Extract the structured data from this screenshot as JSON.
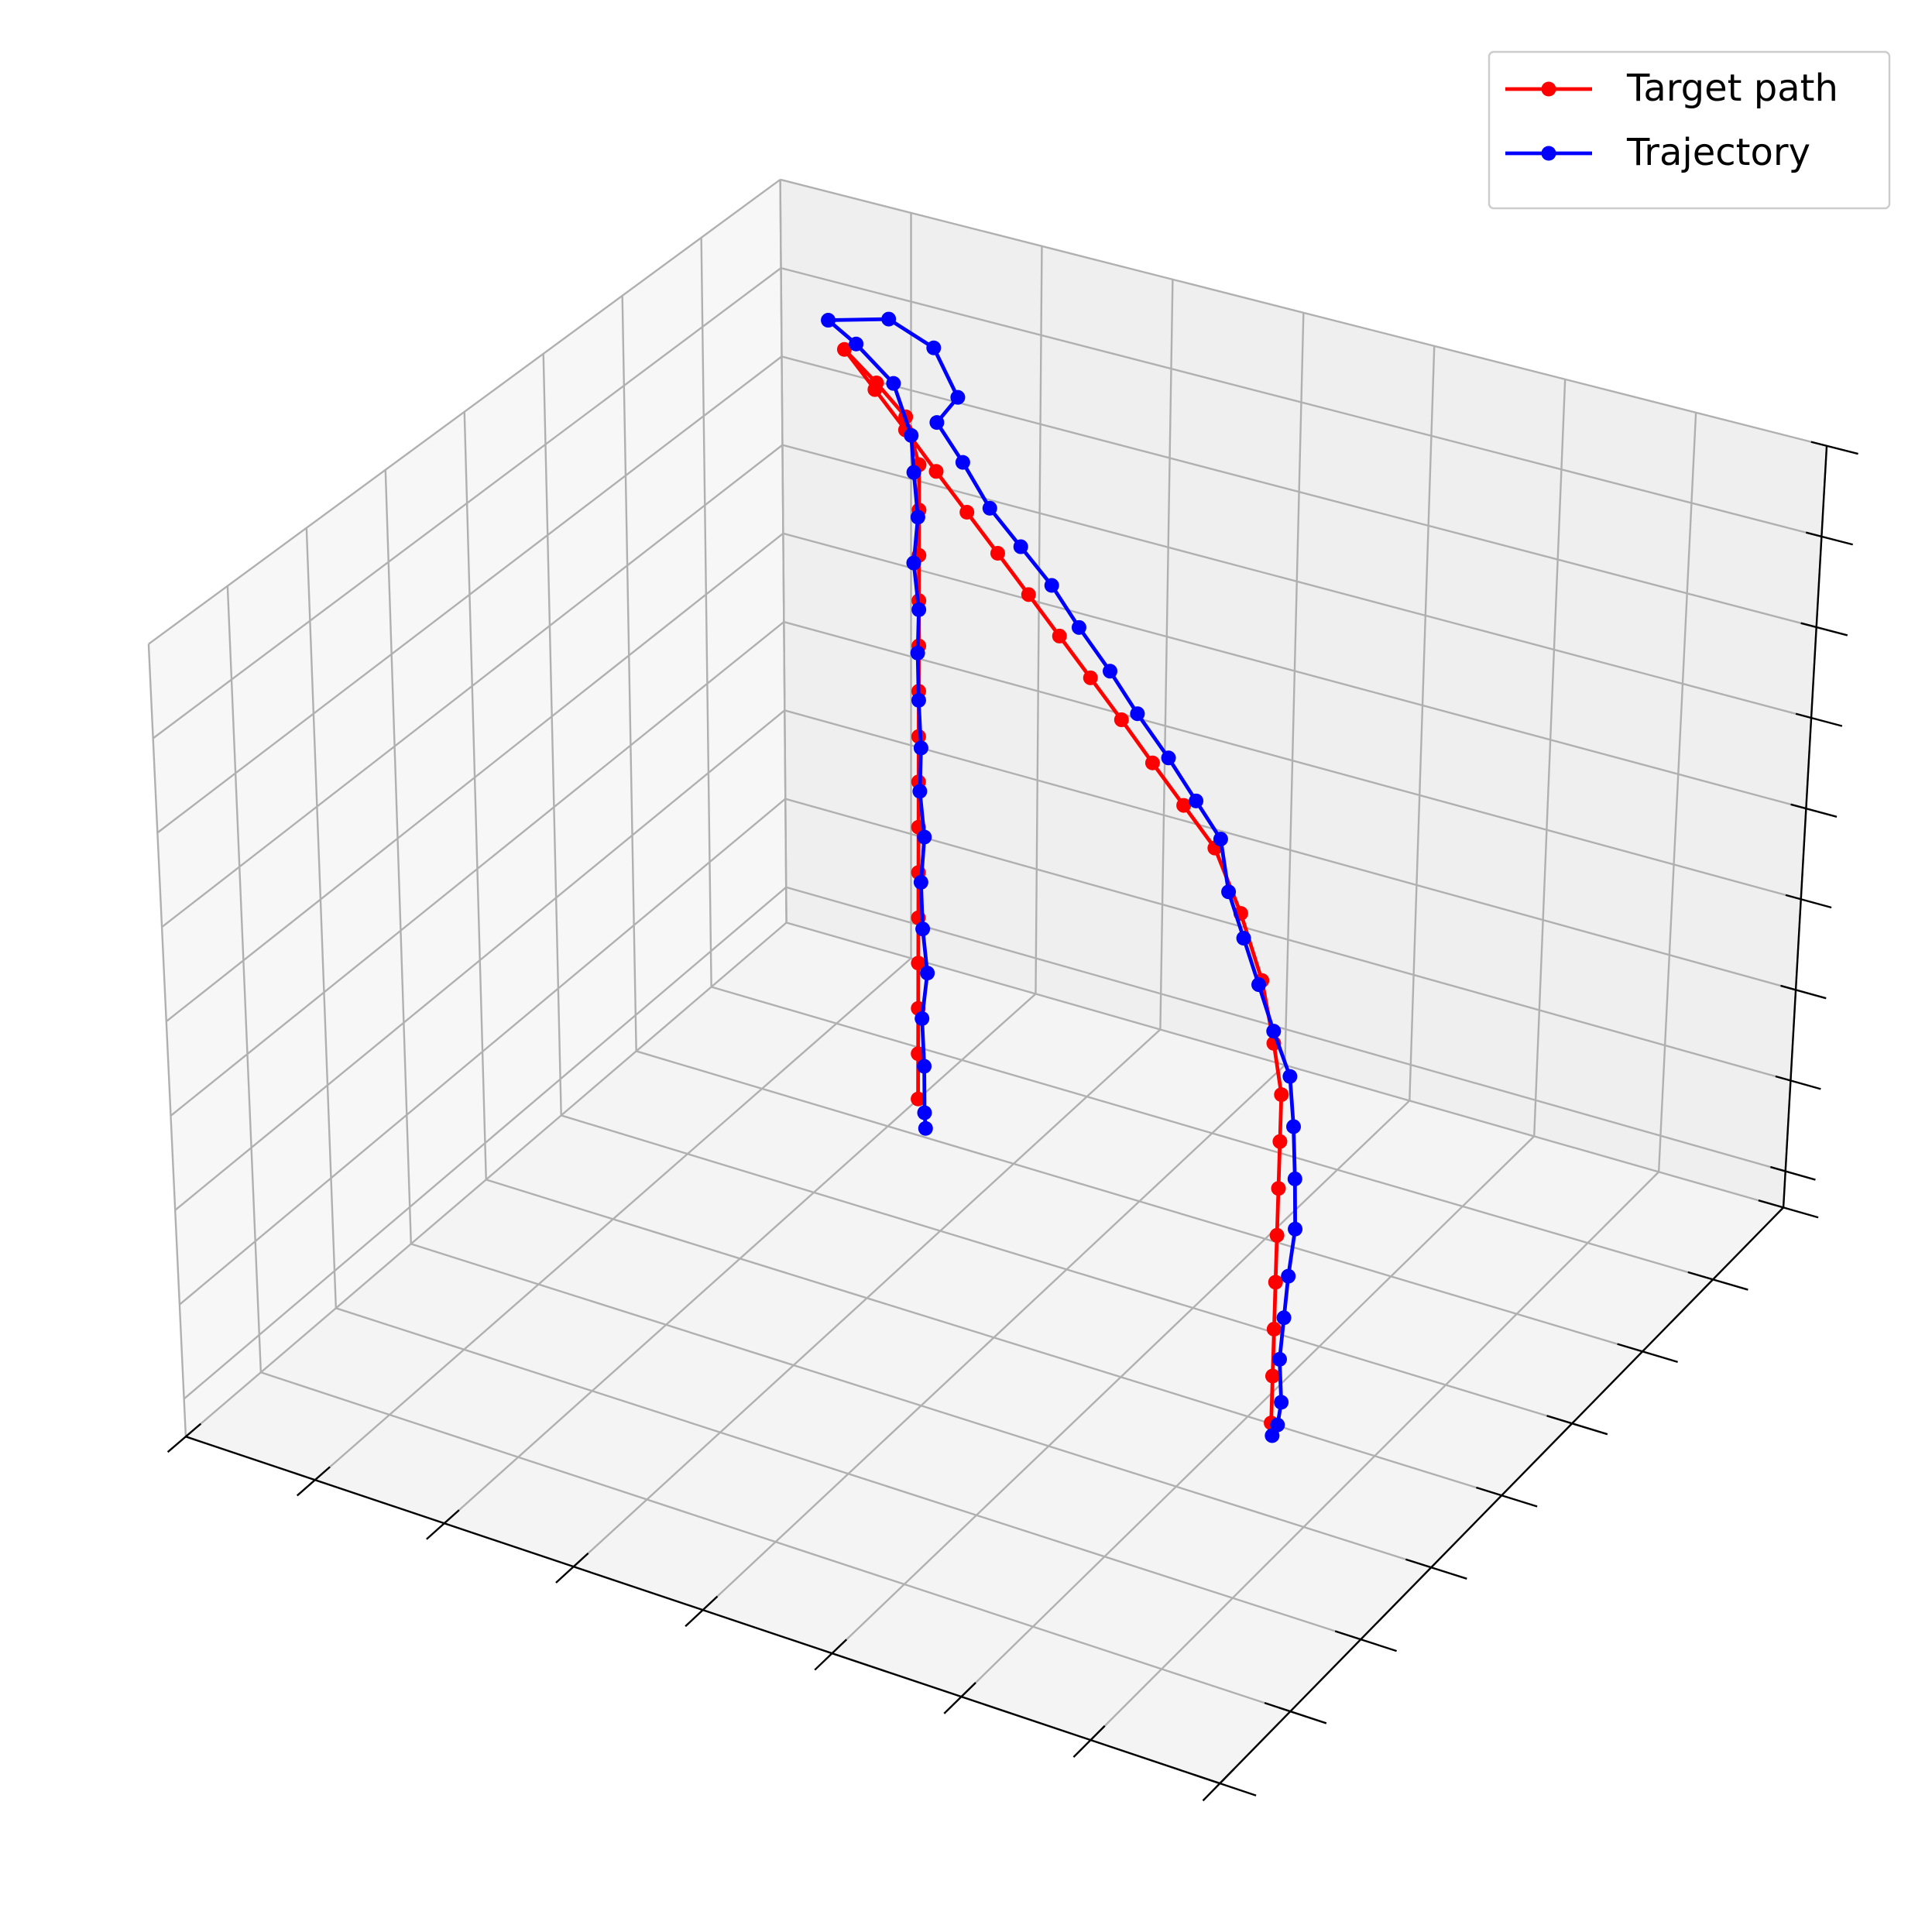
{
  "chart_data": {
    "type": "line3d",
    "grid": true,
    "legend": "upper right",
    "xlim": [
      0,
      8
    ],
    "ylim": [
      0,
      8
    ],
    "zlim": [
      -0.4,
      8
    ],
    "xticks": [
      0,
      1,
      2,
      3,
      4,
      5,
      6,
      7,
      8
    ],
    "yticks": [
      0,
      1,
      2,
      3,
      4,
      5,
      6,
      7,
      8
    ],
    "zticks": [
      0,
      1,
      2,
      3,
      4,
      5,
      6,
      7,
      8
    ],
    "series": [
      {
        "name": "Target path",
        "color": "#ff0000",
        "x": [
          2.24,
          2.24,
          2.24,
          2.24,
          2.24,
          2.24,
          2.24,
          2.24,
          2.24,
          2.24,
          2.24,
          2.24,
          2.24,
          2.24,
          2.24,
          2.08,
          1.8,
          1.44,
          1.8,
          2.16,
          2.52,
          2.88,
          3.24,
          3.6,
          3.96,
          4.32,
          4.68,
          5.04,
          5.4,
          5.76,
          6.0,
          6.2,
          6.32,
          6.4,
          6.4,
          6.4,
          6.4,
          6.4,
          6.4,
          6.4,
          6.4
        ],
        "y": [
          6.0,
          6.0,
          6.0,
          6.0,
          6.0,
          6.0,
          6.0,
          6.0,
          6.0,
          6.0,
          6.0,
          6.0,
          6.0,
          6.0,
          6.0,
          6.1,
          6.2,
          6.4,
          6.18,
          5.96,
          5.74,
          5.52,
          5.3,
          5.08,
          4.86,
          4.64,
          4.42,
          4.2,
          3.98,
          3.76,
          3.7,
          3.65,
          3.62,
          3.6,
          3.6,
          3.6,
          3.6,
          3.6,
          3.6,
          3.6,
          3.6
        ],
        "z": [
          0,
          0.5,
          1.0,
          1.5,
          2.0,
          2.5,
          3.0,
          3.5,
          4.0,
          4.5,
          5.0,
          5.5,
          6.0,
          6.5,
          7.0,
          7.4,
          7.6,
          7.7,
          7.54,
          7.38,
          7.21,
          7.05,
          6.89,
          6.73,
          6.57,
          6.41,
          6.25,
          6.08,
          5.92,
          5.76,
          5.2,
          4.6,
          4.0,
          3.5,
          3.0,
          2.5,
          2.0,
          1.5,
          1.0,
          0.5,
          0
        ]
      },
      {
        "name": "Trajectory",
        "color": "#0000ff",
        "x": [
          2.3,
          2.28,
          2.3,
          2.27,
          2.3,
          2.28,
          2.26,
          2.28,
          2.25,
          2.27,
          2.24,
          2.22,
          2.24,
          2.2,
          2.22,
          2.2,
          2.18,
          1.9,
          1.5,
          1.2,
          1.6,
          2.0,
          2.3,
          2.2,
          2.6,
          2.95,
          3.3,
          3.65,
          4.0,
          4.35,
          4.7,
          5.05,
          5.4,
          5.7,
          5.85,
          6.0,
          6.15,
          6.3,
          6.45,
          6.5,
          6.55,
          6.58,
          6.55,
          6.5,
          6.45,
          6.5,
          6.45,
          6.4
        ],
        "y": [
          6.0,
          6.02,
          5.98,
          6.0,
          6.02,
          5.99,
          6.0,
          6.01,
          6.0,
          5.98,
          6.0,
          6.02,
          6.0,
          6.0,
          6.02,
          6.0,
          6.0,
          6.25,
          6.45,
          6.6,
          6.7,
          6.6,
          6.4,
          6.3,
          5.95,
          5.7,
          5.5,
          5.3,
          5.05,
          4.85,
          4.6,
          4.4,
          4.15,
          3.95,
          3.8,
          3.75,
          3.7,
          3.65,
          3.62,
          3.6,
          3.55,
          3.52,
          3.5,
          3.55,
          3.6,
          3.55,
          3.6,
          3.62
        ],
        "z": [
          -0.3,
          -0.15,
          0.4,
          0.9,
          1.4,
          1.9,
          2.4,
          2.9,
          3.4,
          3.9,
          4.4,
          4.9,
          5.4,
          5.9,
          6.4,
          6.9,
          7.3,
          7.6,
          7.75,
          7.8,
          7.9,
          7.8,
          7.5,
          7.25,
          7.2,
          7.0,
          6.85,
          6.7,
          6.55,
          6.35,
          6.2,
          6.0,
          5.85,
          5.7,
          5.3,
          4.9,
          4.5,
          4.1,
          3.7,
          3.2,
          2.7,
          2.2,
          1.7,
          1.2,
          0.7,
          0.3,
          0.0,
          -0.15
        ]
      }
    ]
  }
}
